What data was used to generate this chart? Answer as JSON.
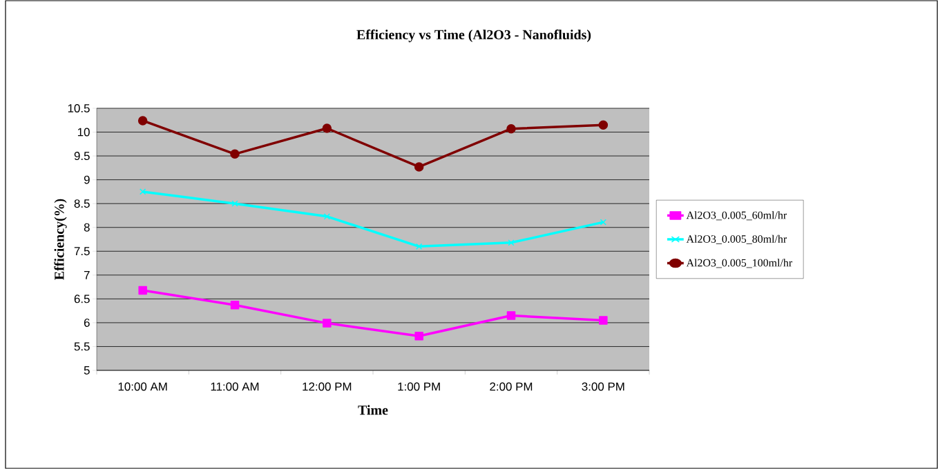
{
  "chart_data": {
    "type": "line",
    "title": "Efficiency vs Time (Al2O3 - Nanofluids)",
    "xlabel": "Time",
    "ylabel": "Efficiency(%)",
    "categories": [
      "10:00 AM",
      "11:00 AM",
      "12:00 PM",
      "1:00 PM",
      "2:00 PM",
      "3:00 PM"
    ],
    "series": [
      {
        "name": "Al2O3_0.005_60ml/hr",
        "color": "#ff00ff",
        "marker": "square",
        "values": [
          6.68,
          6.37,
          5.99,
          5.72,
          6.15,
          6.05
        ]
      },
      {
        "name": "Al2O3_0.005_80ml/hr",
        "color": "#00ffff",
        "marker": "cross",
        "values": [
          8.75,
          8.5,
          8.23,
          7.6,
          7.68,
          8.11
        ]
      },
      {
        "name": "Al2O3_0.005_100ml/hr",
        "color": "#800000",
        "marker": "circle",
        "values": [
          10.24,
          9.54,
          10.08,
          9.27,
          10.07,
          10.15
        ]
      }
    ],
    "ylim": [
      5,
      10.5
    ],
    "yticks": [
      5,
      5.5,
      6,
      6.5,
      7,
      7.5,
      8,
      8.5,
      9,
      9.5,
      10,
      10.5
    ],
    "grid": "y",
    "legend": "right",
    "line_style": "solid"
  }
}
